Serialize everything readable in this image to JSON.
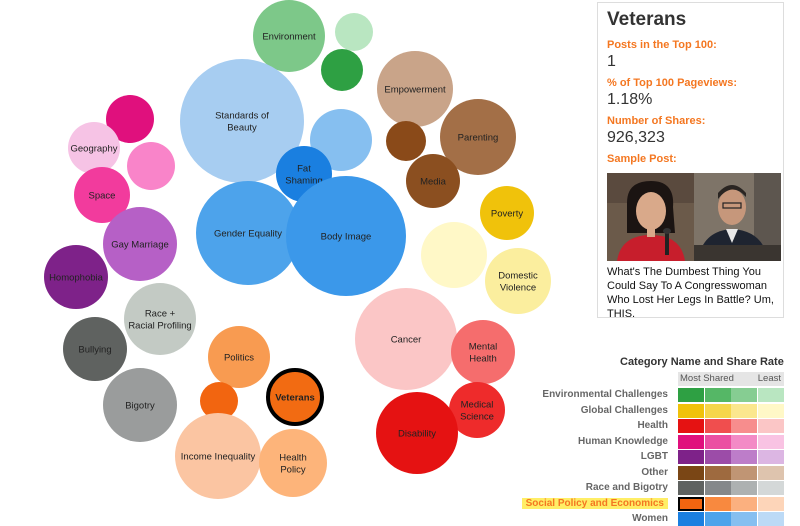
{
  "bubbles": [
    {
      "label": "Environment",
      "color": "#7dc889"
    },
    {
      "label": "",
      "color": "#b9e6c1"
    },
    {
      "label": "",
      "color": "#2ea043"
    },
    {
      "label": "Standards of Beauty",
      "color": "#a7cdf1"
    },
    {
      "label": "",
      "color": "#86bff0"
    },
    {
      "label": "Fat Shaming",
      "color": "#1a7fe0"
    },
    {
      "label": "Gender Equality",
      "color": "#4da3eb"
    },
    {
      "label": "Body Image",
      "color": "#3b98ea"
    },
    {
      "label": "Empowerment",
      "color": "#c9a489"
    },
    {
      "label": "Parenting",
      "color": "#a36f47"
    },
    {
      "label": "",
      "color": "#8a4a19"
    },
    {
      "label": "Media",
      "color": "#8b4f20"
    },
    {
      "label": "",
      "color": "#e0107d"
    },
    {
      "label": "Geography",
      "color": "#f6c3e5"
    },
    {
      "label": "",
      "color": "#f984c9"
    },
    {
      "label": "Space",
      "color": "#f23b9d"
    },
    {
      "label": "Gay Marriage",
      "color": "#b660c6"
    },
    {
      "label": "Homophobia",
      "color": "#7e2289"
    },
    {
      "label": "Poverty",
      "color": "#f0c20b"
    },
    {
      "label": "",
      "color": "#fff8c7"
    },
    {
      "label": "Domestic Violence",
      "color": "#fbee9e"
    },
    {
      "label": "Race + Racial Profiling",
      "color": "#c3cac4"
    },
    {
      "label": "Bullying",
      "color": "#5f6260"
    },
    {
      "label": "Bigotry",
      "color": "#9a9c9c"
    },
    {
      "label": "Cancer",
      "color": "#fbc6c6"
    },
    {
      "label": "Mental Health",
      "color": "#f56d6d"
    },
    {
      "label": "Medical Science",
      "color": "#ee2b2b"
    },
    {
      "label": "Disability",
      "color": "#e51212"
    },
    {
      "label": "Politics",
      "color": "#f89b51"
    },
    {
      "label": "",
      "color": "#f26510"
    },
    {
      "label": "Veterans",
      "color": "#f26b12"
    },
    {
      "label": "Income Inequality",
      "color": "#fbc5a2"
    },
    {
      "label": "Health Policy",
      "color": "#fdb47a"
    }
  ],
  "panel": {
    "title": "Veterans",
    "posts_label": "Posts in the Top 100:",
    "posts_value": "1",
    "pageviews_label": "% of Top 100 Pageviews:",
    "pageviews_value": "1.18%",
    "shares_label": "Number of Shares:",
    "shares_value": "926,323",
    "sample_label": "Sample Post:",
    "sample_caption": "What's The Dumbest Thing You Could Say To A Congresswoman Who Lost Her Legs In Battle? Um, THIS."
  },
  "legend": {
    "title": "Category Name and Share Rate",
    "most": "Most Shared",
    "least": "Least",
    "rows": [
      {
        "name": "Environmental Challenges",
        "colors": [
          "#2ea043",
          "#55b766",
          "#86cd92",
          "#b9e6c1"
        ]
      },
      {
        "name": "Global Challenges",
        "colors": [
          "#f0c20b",
          "#f6d64b",
          "#fbe78e",
          "#fff8c7"
        ]
      },
      {
        "name": "Health",
        "colors": [
          "#e51212",
          "#f04e4e",
          "#f78d8d",
          "#fbc6c6"
        ]
      },
      {
        "name": "Human Knowledge",
        "colors": [
          "#e0107d",
          "#eb4fa2",
          "#f38ac6",
          "#f9c3e3"
        ]
      },
      {
        "name": "LGBT",
        "colors": [
          "#7e2289",
          "#9c4ca8",
          "#bd7dc9",
          "#dcb6e3"
        ]
      },
      {
        "name": "Other",
        "colors": [
          "#7a4615",
          "#9e6a3f",
          "#c09574",
          "#dec4ae"
        ]
      },
      {
        "name": "Race and Bigotry",
        "colors": [
          "#5f6260",
          "#85888a",
          "#adb1b1",
          "#d4d8d8"
        ]
      },
      {
        "name": "Social Policy and Economics",
        "colors": [
          "#f26510",
          "#f8893f",
          "#fbb07f",
          "#fdd5b9"
        ],
        "selected": true
      },
      {
        "name": "Women",
        "colors": [
          "#1a7fe0",
          "#4da3eb",
          "#86bff0",
          "#bcdaf6"
        ]
      }
    ]
  }
}
